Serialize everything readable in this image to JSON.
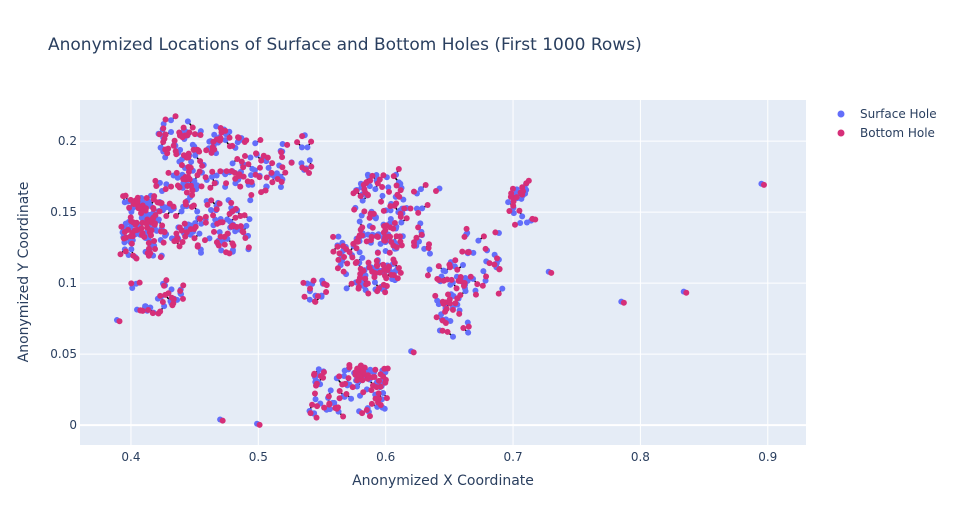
{
  "chart_data": {
    "type": "scatter",
    "title": "Anonymized Locations of Surface and Bottom Holes (First 1000 Rows)",
    "xlabel": "Anonymized X Coordinate",
    "ylabel": "Anonymized Y Coordinate",
    "xlim": [
      0.36,
      0.93
    ],
    "ylim": [
      -0.014,
      0.229
    ],
    "x_ticks": [
      "0.4",
      "0.5",
      "0.6",
      "0.7",
      "0.8",
      "0.9"
    ],
    "x_tick_values": [
      0.4,
      0.5,
      0.6,
      0.7,
      0.8,
      0.9
    ],
    "y_ticks": [
      "0",
      "0.05",
      "0.1",
      "0.15",
      "0.2"
    ],
    "y_tick_values": [
      0,
      0.05,
      0.1,
      0.15,
      0.2
    ],
    "grid": true,
    "legend_position": "top-right",
    "plot_background": "#e5ecf6",
    "connector_color": "#000000",
    "series": [
      {
        "name": "Surface Hole",
        "color": "#636efa"
      },
      {
        "name": "Bottom Hole",
        "color": "#d62f78"
      }
    ],
    "clusters": [
      {
        "x": [
          0.392,
          0.425
        ],
        "y": [
          0.118,
          0.162
        ],
        "n": 70
      },
      {
        "x": [
          0.4,
          0.44
        ],
        "y": [
          0.078,
          0.1
        ],
        "n": 22
      },
      {
        "x": [
          0.418,
          0.45
        ],
        "y": [
          0.13,
          0.18
        ],
        "n": 45
      },
      {
        "x": [
          0.418,
          0.445
        ],
        "y": [
          0.185,
          0.215
        ],
        "n": 22
      },
      {
        "x": [
          0.44,
          0.49
        ],
        "y": [
          0.165,
          0.212
        ],
        "n": 65
      },
      {
        "x": [
          0.45,
          0.495
        ],
        "y": [
          0.12,
          0.16
        ],
        "n": 45
      },
      {
        "x": [
          0.49,
          0.52
        ],
        "y": [
          0.165,
          0.2
        ],
        "n": 25
      },
      {
        "x": [
          0.522,
          0.545
        ],
        "y": [
          0.178,
          0.205
        ],
        "n": 8
      },
      {
        "x": [
          0.538,
          0.552
        ],
        "y": [
          0.088,
          0.103
        ],
        "n": 10
      },
      {
        "x": [
          0.56,
          0.61
        ],
        "y": [
          0.095,
          0.135
        ],
        "n": 70
      },
      {
        "x": [
          0.575,
          0.615
        ],
        "y": [
          0.128,
          0.178
        ],
        "n": 55
      },
      {
        "x": [
          0.605,
          0.645
        ],
        "y": [
          0.108,
          0.17
        ],
        "n": 18
      },
      {
        "x": [
          0.64,
          0.665
        ],
        "y": [
          0.06,
          0.115
        ],
        "n": 38
      },
      {
        "x": [
          0.66,
          0.695
        ],
        "y": [
          0.09,
          0.142
        ],
        "n": 18
      },
      {
        "x": [
          0.695,
          0.715
        ],
        "y": [
          0.142,
          0.17
        ],
        "n": 18
      },
      {
        "x": [
          0.54,
          0.6
        ],
        "y": [
          0.008,
          0.04
        ],
        "n": 55
      },
      {
        "x": [
          0.575,
          0.605
        ],
        "y": [
          0.025,
          0.041
        ],
        "n": 18
      }
    ],
    "outliers": [
      {
        "x": 0.389,
        "y": 0.074
      },
      {
        "x": 0.47,
        "y": 0.004
      },
      {
        "x": 0.499,
        "y": 0.001
      },
      {
        "x": 0.62,
        "y": 0.052
      },
      {
        "x": 0.728,
        "y": 0.108
      },
      {
        "x": 0.785,
        "y": 0.087
      },
      {
        "x": 0.834,
        "y": 0.094
      },
      {
        "x": 0.895,
        "y": 0.17
      }
    ]
  }
}
